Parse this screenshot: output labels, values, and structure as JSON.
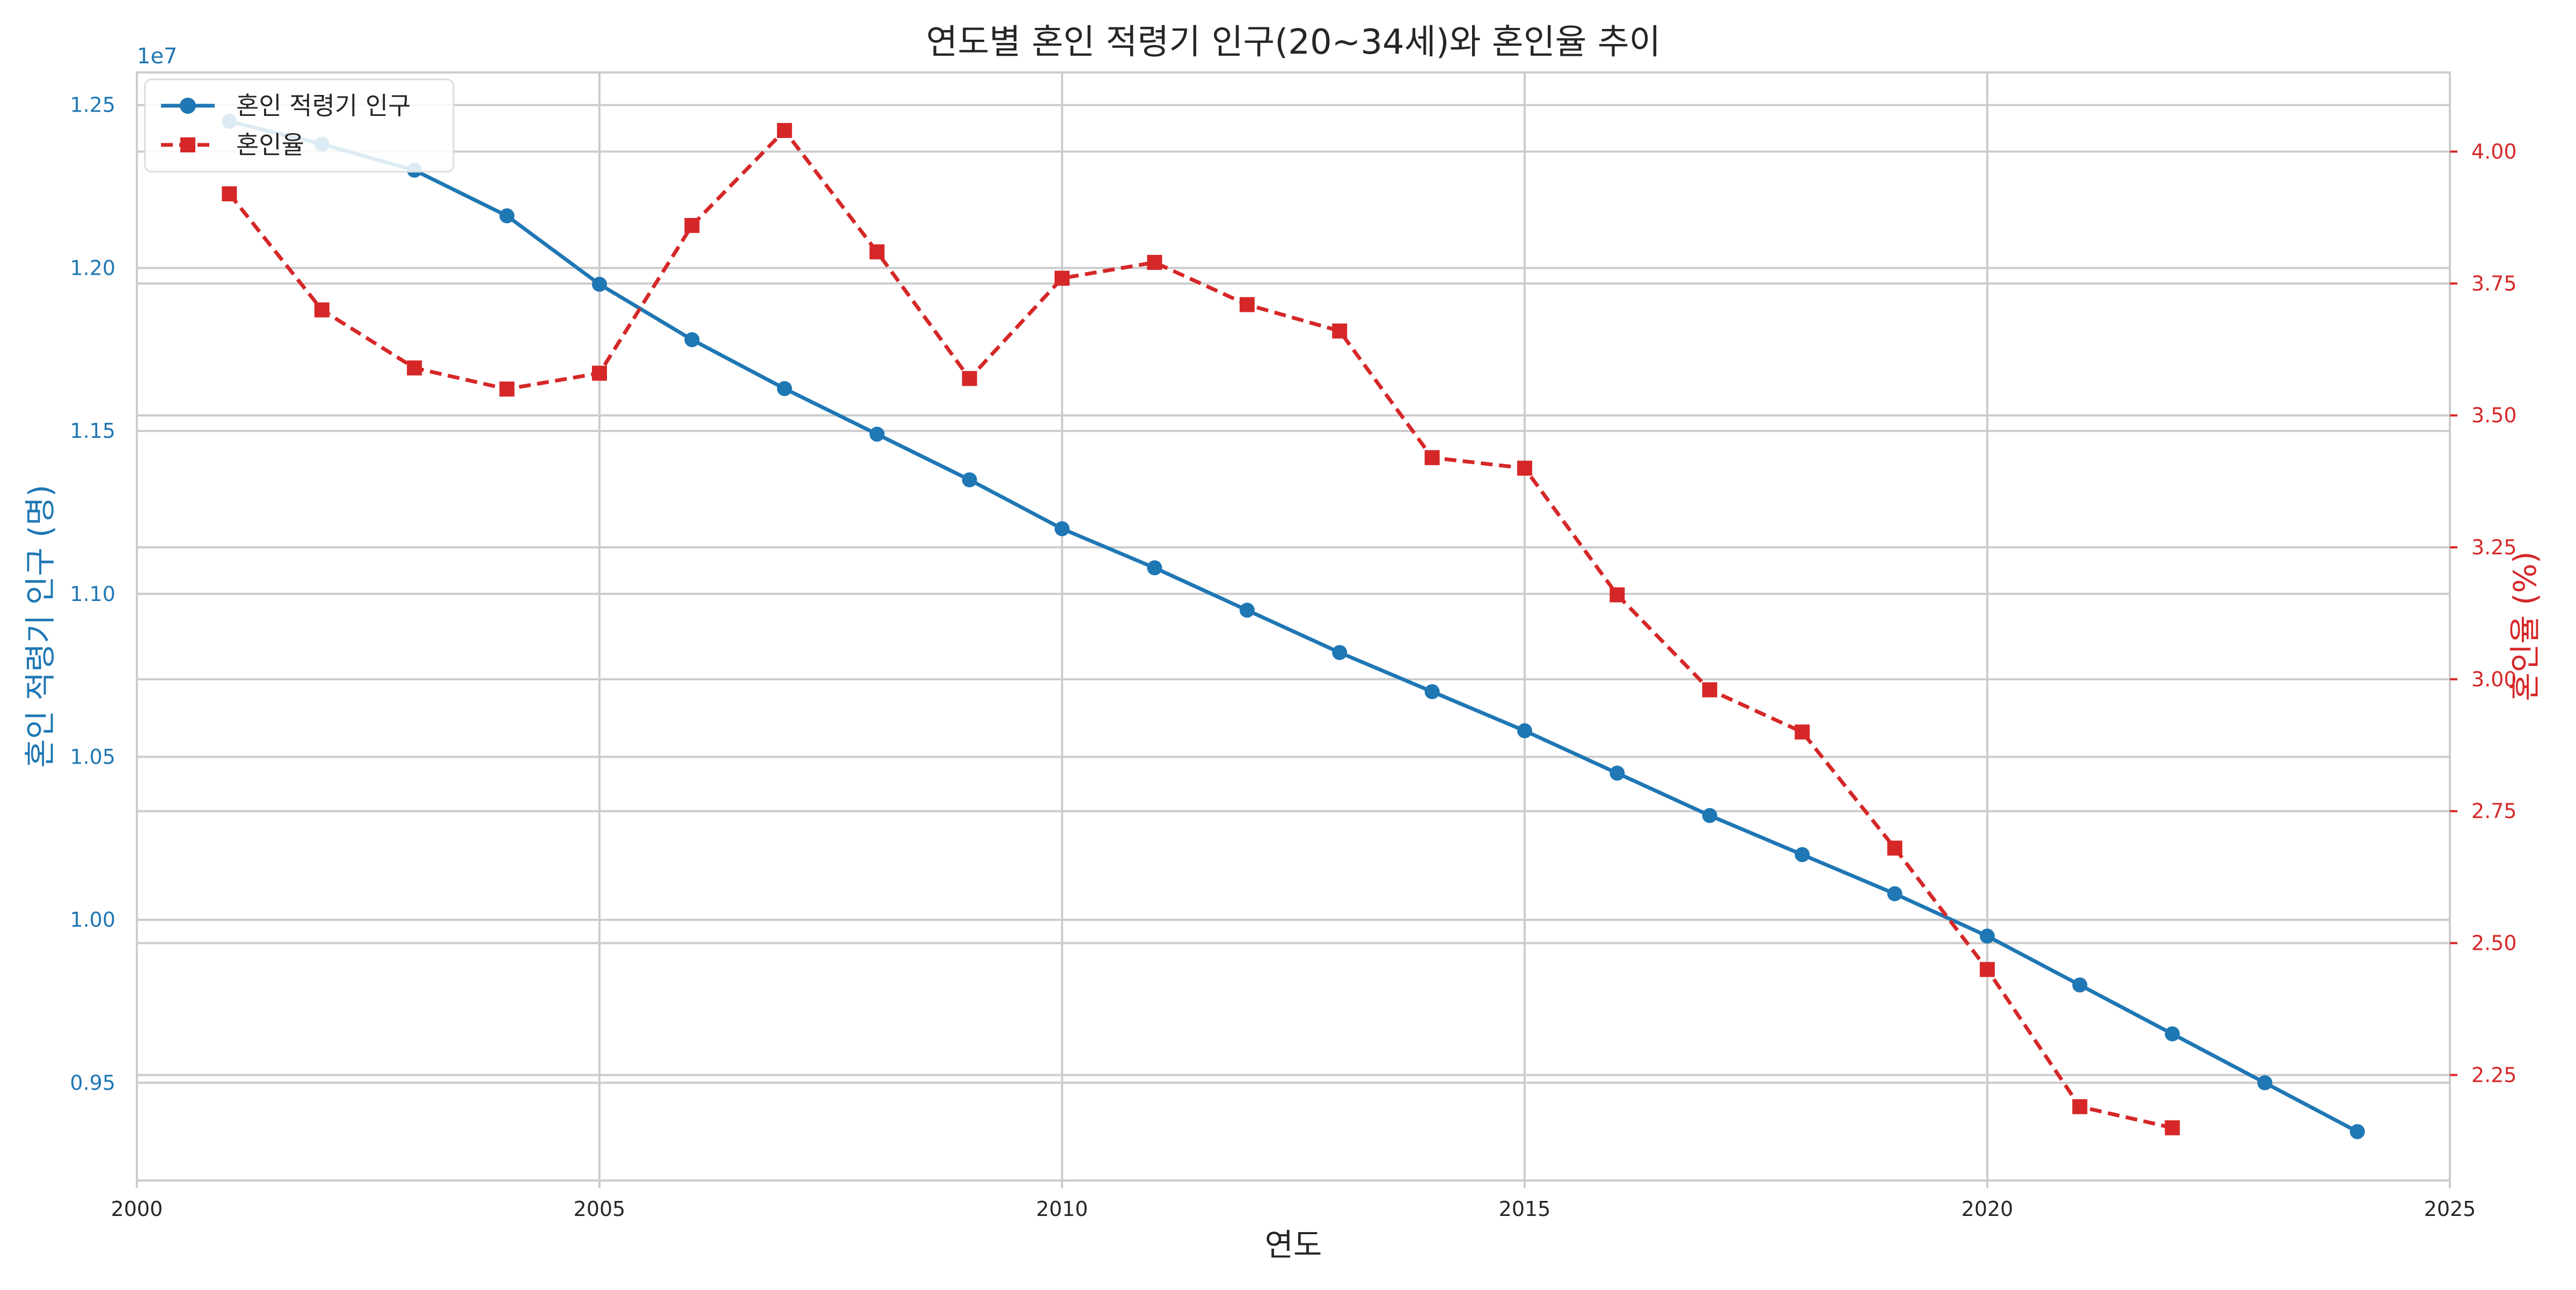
{
  "chart_data": {
    "type": "line",
    "title": "연도별 혼인 적령기 인구(20~34세)와 혼인율 추이",
    "xlabel": "연도",
    "ylabel_left": "혼인 적령기 인구 (명)",
    "ylabel_right": "혼인율 (%)",
    "left_offset_label": "1e7",
    "xlim": [
      2000,
      2025
    ],
    "ylim_left": [
      9200000,
      12600000
    ],
    "ylim_right": [
      2.05,
      4.15
    ],
    "x_ticks": [
      2000,
      2005,
      2010,
      2015,
      2020,
      2025
    ],
    "y_left_ticks": [
      9500000,
      10000000,
      10500000,
      11000000,
      11500000,
      12000000,
      12500000
    ],
    "y_left_tick_labels": [
      "0.95",
      "1.00",
      "1.05",
      "1.10",
      "1.15",
      "1.20",
      "1.25"
    ],
    "y_right_ticks": [
      2.25,
      2.5,
      2.75,
      3.0,
      3.25,
      3.5,
      3.75,
      4.0
    ],
    "y_right_tick_labels": [
      "2.25",
      "2.50",
      "2.75",
      "3.00",
      "3.25",
      "3.50",
      "3.75",
      "4.00"
    ],
    "grid": true,
    "legend_position": "top-left",
    "series": [
      {
        "name": "혼인 적령기 인구",
        "axis": "left",
        "color": "#1f77b4",
        "line_style": "solid",
        "marker": "circle",
        "x": [
          2001,
          2002,
          2003,
          2004,
          2005,
          2006,
          2007,
          2008,
          2009,
          2010,
          2011,
          2012,
          2013,
          2014,
          2015,
          2016,
          2017,
          2018,
          2019,
          2020,
          2021,
          2022,
          2023,
          2024
        ],
        "values": [
          12450000,
          12380000,
          12300000,
          12160000,
          11950000,
          11780000,
          11630000,
          11490000,
          11350000,
          11200000,
          11080000,
          10950000,
          10820000,
          10700000,
          10580000,
          10450000,
          10320000,
          10200000,
          10080000,
          9950000,
          9800000,
          9650000,
          9500000,
          9350000
        ]
      },
      {
        "name": "혼인율",
        "axis": "right",
        "color": "#d62728",
        "line_style": "dashed",
        "marker": "square",
        "x": [
          2001,
          2002,
          2003,
          2004,
          2005,
          2006,
          2007,
          2008,
          2009,
          2010,
          2011,
          2012,
          2013,
          2014,
          2015,
          2016,
          2017,
          2018,
          2019,
          2020,
          2021,
          2022
        ],
        "values": [
          3.92,
          3.7,
          3.59,
          3.55,
          3.58,
          3.86,
          4.04,
          3.81,
          3.57,
          3.76,
          3.79,
          3.71,
          3.66,
          3.42,
          3.4,
          3.16,
          2.98,
          2.9,
          2.68,
          2.45,
          2.19,
          2.15
        ]
      }
    ]
  }
}
